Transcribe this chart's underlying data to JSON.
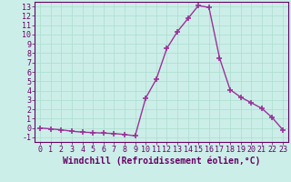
{
  "x": [
    0,
    1,
    2,
    3,
    4,
    5,
    6,
    7,
    8,
    9,
    10,
    11,
    12,
    13,
    14,
    15,
    16,
    17,
    18,
    19,
    20,
    21,
    22,
    23
  ],
  "y": [
    0,
    -0.1,
    -0.2,
    -0.35,
    -0.45,
    -0.5,
    -0.55,
    -0.6,
    -0.7,
    -0.85,
    3.2,
    5.2,
    8.5,
    10.3,
    11.7,
    13.1,
    12.9,
    7.5,
    4.1,
    3.3,
    2.7,
    2.1,
    1.1,
    -0.2
  ],
  "line_color": "#993399",
  "marker": "+",
  "marker_size": 4,
  "marker_lw": 1.2,
  "line_width": 1.0,
  "bg_color": "#cceee8",
  "grid_color": "#aaddcc",
  "xlabel": "Windchill (Refroidissement éolien,°C)",
  "xlim": [
    -0.5,
    23.5
  ],
  "ylim": [
    -1.5,
    13.5
  ],
  "yticks": [
    -1,
    0,
    1,
    2,
    3,
    4,
    5,
    6,
    7,
    8,
    9,
    10,
    11,
    12,
    13
  ],
  "xticks": [
    0,
    1,
    2,
    3,
    4,
    5,
    6,
    7,
    8,
    9,
    10,
    11,
    12,
    13,
    14,
    15,
    16,
    17,
    18,
    19,
    20,
    21,
    22,
    23
  ],
  "axis_color": "#660066",
  "tick_labelsize": 6.0,
  "xlabel_fontsize": 7.0,
  "spine_color": "#660066"
}
